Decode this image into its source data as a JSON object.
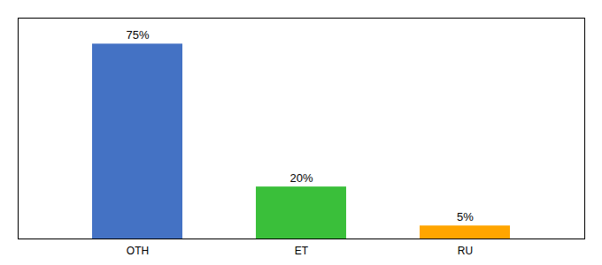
{
  "chart_data": {
    "type": "bar",
    "categories": [
      "OTH",
      "ET",
      "RU"
    ],
    "values": [
      75,
      20,
      5
    ],
    "value_labels": [
      "75%",
      "20%",
      "5%"
    ],
    "colors": [
      "#4472c4",
      "#3abf3a",
      "#ffa500"
    ],
    "ylim": [
      0,
      85
    ],
    "data_labels": true,
    "grid": false,
    "tick_labels": "x"
  }
}
